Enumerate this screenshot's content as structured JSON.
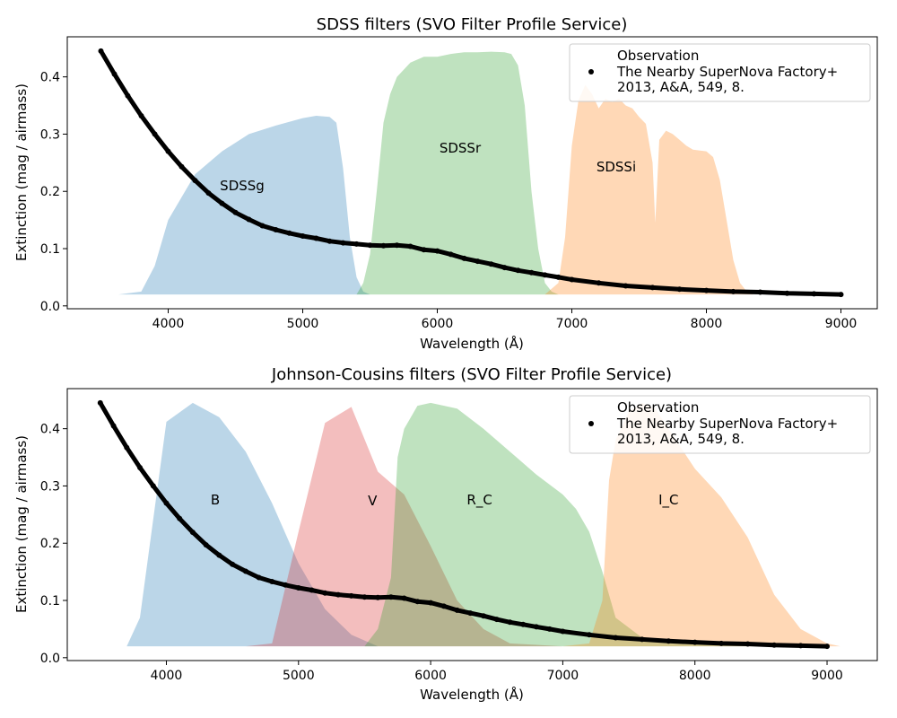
{
  "chart_data": [
    {
      "type": "area",
      "title": "SDSS filters (SVO Filter Profile Service)",
      "xlabel": "Wavelength (Å)",
      "ylabel": "Extinction (mag / airmass)",
      "xlim": [
        3250,
        9270
      ],
      "ylim": [
        -0.005,
        0.47
      ],
      "xticks": [
        4000,
        5000,
        6000,
        7000,
        8000,
        9000
      ],
      "yticks": [
        0.0,
        0.1,
        0.2,
        0.3,
        0.4
      ],
      "grid": false,
      "legend": {
        "placement": "top-right",
        "title": "Observation",
        "entries": [
          {
            "label": "The Nearby SuperNova Factory+\n2013, A&A, 549, 8.",
            "marker": "dot",
            "color": "#000000"
          }
        ]
      },
      "series": [
        {
          "name": "Observation",
          "kind": "scatter-line",
          "color": "#000000",
          "x": [
            3500,
            3600,
            3700,
            3800,
            3900,
            4000,
            4100,
            4200,
            4300,
            4400,
            4500,
            4600,
            4700,
            4800,
            4900,
            5000,
            5100,
            5200,
            5300,
            5400,
            5500,
            5600,
            5700,
            5800,
            5900,
            6000,
            6100,
            6200,
            6300,
            6400,
            6500,
            6600,
            6700,
            6800,
            6900,
            7000,
            7200,
            7400,
            7600,
            7800,
            8000,
            8200,
            8400,
            8600,
            8800,
            9000
          ],
          "y": [
            0.445,
            0.405,
            0.367,
            0.332,
            0.3,
            0.27,
            0.243,
            0.219,
            0.197,
            0.179,
            0.163,
            0.151,
            0.14,
            0.133,
            0.127,
            0.122,
            0.118,
            0.113,
            0.11,
            0.108,
            0.106,
            0.105,
            0.106,
            0.104,
            0.098,
            0.096,
            0.09,
            0.083,
            0.078,
            0.073,
            0.067,
            0.062,
            0.058,
            0.054,
            0.05,
            0.046,
            0.04,
            0.035,
            0.032,
            0.029,
            0.027,
            0.025,
            0.024,
            0.022,
            0.021,
            0.02
          ]
        },
        {
          "name": "SDSSg",
          "kind": "band",
          "color": "#1f77b4",
          "base": 0.02,
          "x": [
            3630,
            3800,
            3900,
            4000,
            4200,
            4400,
            4600,
            4800,
            5000,
            5100,
            5200,
            5250,
            5300,
            5350,
            5400,
            5450,
            5500
          ],
          "y": [
            0.02,
            0.025,
            0.07,
            0.15,
            0.23,
            0.27,
            0.3,
            0.315,
            0.328,
            0.332,
            0.33,
            0.32,
            0.24,
            0.12,
            0.05,
            0.025,
            0.02
          ]
        },
        {
          "name": "SDSSr",
          "kind": "band",
          "color": "#2ca02c",
          "base": 0.02,
          "x": [
            5400,
            5450,
            5500,
            5550,
            5600,
            5650,
            5700,
            5800,
            5900,
            6000,
            6100,
            6200,
            6300,
            6400,
            6500,
            6550,
            6600,
            6650,
            6700,
            6750,
            6800,
            6850,
            6900
          ],
          "y": [
            0.02,
            0.04,
            0.09,
            0.2,
            0.32,
            0.37,
            0.4,
            0.425,
            0.435,
            0.435,
            0.44,
            0.443,
            0.443,
            0.444,
            0.443,
            0.44,
            0.42,
            0.35,
            0.2,
            0.1,
            0.04,
            0.025,
            0.02
          ]
        },
        {
          "name": "SDSSi",
          "kind": "band",
          "color": "#ff7f0e",
          "base": 0.02,
          "x": [
            6800,
            6900,
            6950,
            7000,
            7050,
            7100,
            7150,
            7200,
            7250,
            7300,
            7350,
            7400,
            7450,
            7500,
            7550,
            7600,
            7620,
            7650,
            7700,
            7750,
            7800,
            7850,
            7900,
            8000,
            8050,
            8100,
            8150,
            8200,
            8250,
            8300,
            8350
          ],
          "y": [
            0.02,
            0.04,
            0.12,
            0.28,
            0.36,
            0.386,
            0.37,
            0.345,
            0.362,
            0.356,
            0.362,
            0.35,
            0.345,
            0.33,
            0.318,
            0.25,
            0.145,
            0.29,
            0.306,
            0.3,
            0.29,
            0.28,
            0.273,
            0.27,
            0.26,
            0.22,
            0.15,
            0.08,
            0.04,
            0.025,
            0.02
          ]
        }
      ],
      "band_labels": [
        {
          "text": "SDSSg",
          "x": 4550,
          "y": 0.21
        },
        {
          "text": "SDSSr",
          "x": 6170,
          "y": 0.276
        },
        {
          "text": "SDSSi",
          "x": 7330,
          "y": 0.243
        }
      ]
    },
    {
      "type": "area",
      "title": "Johnson-Cousins filters (SVO Filter Profile Service)",
      "xlabel": "Wavelength (Å)",
      "ylabel": "Extinction (mag / airmass)",
      "xlim": [
        3250,
        9380
      ],
      "ylim": [
        -0.005,
        0.47
      ],
      "xticks": [
        4000,
        5000,
        6000,
        7000,
        8000,
        9000
      ],
      "yticks": [
        0.0,
        0.1,
        0.2,
        0.3,
        0.4
      ],
      "grid": false,
      "legend": {
        "placement": "top-right",
        "title": "Observation",
        "entries": [
          {
            "label": "The Nearby SuperNova Factory+\n2013, A&A, 549, 8.",
            "marker": "dot",
            "color": "#000000"
          }
        ]
      },
      "series": [
        {
          "name": "Observation",
          "kind": "scatter-line",
          "color": "#000000",
          "x": [
            3500,
            3600,
            3700,
            3800,
            3900,
            4000,
            4100,
            4200,
            4300,
            4400,
            4500,
            4600,
            4700,
            4800,
            4900,
            5000,
            5100,
            5200,
            5300,
            5400,
            5500,
            5600,
            5700,
            5800,
            5900,
            6000,
            6100,
            6200,
            6300,
            6400,
            6500,
            6600,
            6700,
            6800,
            6900,
            7000,
            7200,
            7400,
            7600,
            7800,
            8000,
            8200,
            8400,
            8600,
            8800,
            9000
          ],
          "y": [
            0.445,
            0.405,
            0.367,
            0.332,
            0.3,
            0.27,
            0.243,
            0.219,
            0.197,
            0.179,
            0.163,
            0.151,
            0.14,
            0.133,
            0.127,
            0.122,
            0.118,
            0.113,
            0.11,
            0.108,
            0.106,
            0.105,
            0.106,
            0.104,
            0.098,
            0.096,
            0.09,
            0.083,
            0.078,
            0.073,
            0.067,
            0.062,
            0.058,
            0.054,
            0.05,
            0.046,
            0.04,
            0.035,
            0.032,
            0.029,
            0.027,
            0.025,
            0.024,
            0.022,
            0.021,
            0.02
          ]
        },
        {
          "name": "B",
          "kind": "band",
          "color": "#1f77b4",
          "base": 0.02,
          "x": [
            3700,
            3800,
            4000,
            4200,
            4400,
            4600,
            4800,
            5000,
            5200,
            5400,
            5600
          ],
          "y": [
            0.02,
            0.07,
            0.412,
            0.445,
            0.42,
            0.36,
            0.27,
            0.165,
            0.085,
            0.04,
            0.02
          ]
        },
        {
          "name": "V",
          "kind": "band",
          "color": "#d62728",
          "base": 0.02,
          "x": [
            4600,
            4800,
            5000,
            5200,
            5400,
            5600,
            5800,
            6000,
            6200,
            6400,
            6600,
            7000,
            7400
          ],
          "y": [
            0.02,
            0.025,
            0.22,
            0.41,
            0.438,
            0.325,
            0.285,
            0.195,
            0.1,
            0.05,
            0.025,
            0.02,
            0.02
          ]
        },
        {
          "name": "R_C",
          "kind": "band",
          "color": "#2ca02c",
          "base": 0.02,
          "x": [
            5500,
            5600,
            5700,
            5750,
            5800,
            5900,
            6000,
            6200,
            6400,
            6600,
            6800,
            7000,
            7100,
            7200,
            7300,
            7400,
            7600,
            8000,
            8500,
            9000
          ],
          "y": [
            0.02,
            0.05,
            0.14,
            0.35,
            0.4,
            0.44,
            0.445,
            0.435,
            0.4,
            0.36,
            0.32,
            0.285,
            0.26,
            0.22,
            0.15,
            0.07,
            0.035,
            0.025,
            0.022,
            0.02
          ]
        },
        {
          "name": "I_C",
          "kind": "band",
          "color": "#ff7f0e",
          "base": 0.02,
          "x": [
            7000,
            7200,
            7300,
            7350,
            7400,
            7500,
            7600,
            7700,
            7800,
            8000,
            8200,
            8400,
            8600,
            8800,
            9000,
            9100
          ],
          "y": [
            0.02,
            0.025,
            0.1,
            0.31,
            0.38,
            0.43,
            0.445,
            0.435,
            0.4,
            0.33,
            0.28,
            0.21,
            0.11,
            0.05,
            0.025,
            0.02
          ]
        }
      ],
      "band_labels": [
        {
          "text": "B",
          "x": 4370,
          "y": 0.276
        },
        {
          "text": "V",
          "x": 5560,
          "y": 0.274
        },
        {
          "text": "R_C",
          "x": 6370,
          "y": 0.276
        },
        {
          "text": "I_C",
          "x": 7800,
          "y": 0.276
        }
      ]
    }
  ]
}
